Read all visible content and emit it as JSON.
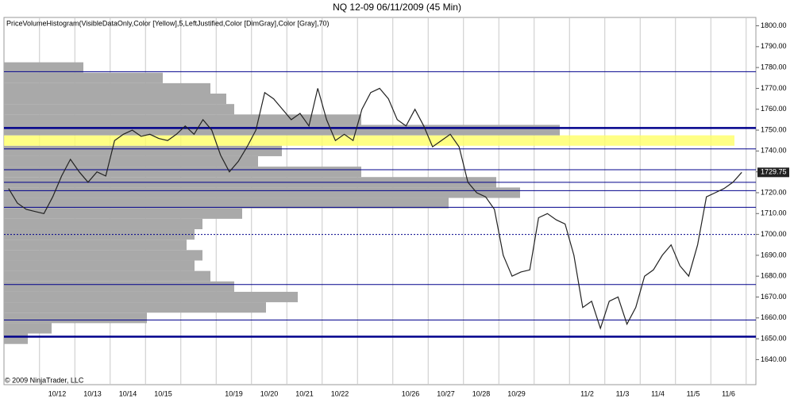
{
  "chart_data": {
    "type": "line",
    "title": "NQ 12-09  06/11/2009 (45 Min)",
    "indicator_label": "PriceVolumeHistogram(VisibleDataOnly,Color [Yellow],5,LeftJustified,Color [DimGray],Color [Gray],70)",
    "copyright": "© 2009 NinjaTrader, LLC",
    "categories": [
      null,
      "10/12",
      "10/13",
      "10/14",
      "10/15",
      null,
      "10/19",
      "10/20",
      "10/21",
      "10/22",
      null,
      "10/26",
      "10/27",
      "10/28",
      "10/29",
      null,
      "11/2",
      "11/3",
      "11/4",
      "11/5",
      "11/6"
    ],
    "series": [
      {
        "name": "NQ 12-09",
        "color": "#222222",
        "values": [
          [
            1722,
            1715,
            1712,
            1711
          ],
          [
            1710,
            1718,
            1728,
            1736
          ],
          [
            1730,
            1725,
            1730,
            1728
          ],
          [
            1745,
            1748,
            1750,
            1747
          ],
          [
            1748,
            1746,
            1745,
            1748
          ],
          [
            1752,
            1748,
            1755,
            1750
          ],
          [
            1738,
            1730,
            1735,
            1742
          ],
          [
            1750,
            1768,
            1765,
            1760
          ],
          [
            1755,
            1758,
            1752,
            1770
          ],
          [
            1755,
            1745,
            1748,
            1745
          ],
          [
            1760,
            1768,
            1770,
            1765
          ],
          [
            1755,
            1752,
            1760,
            1752
          ],
          [
            1742,
            1745,
            1748,
            1742
          ],
          [
            1725,
            1720,
            1718,
            1712
          ],
          [
            1690,
            1680,
            1682,
            1683
          ],
          [
            1708,
            1710,
            1707,
            1705
          ],
          [
            1690,
            1665,
            1668,
            1655
          ],
          [
            1668,
            1670,
            1657,
            1665
          ],
          [
            1680,
            1683,
            1690,
            1695
          ],
          [
            1685,
            1680,
            1695,
            1718
          ],
          [
            1720,
            1722,
            1725,
            1729.75
          ]
        ]
      }
    ],
    "last_price": 1729.75,
    "profile": {
      "color": "#a9a9a9",
      "highlight_color": "#ffff66",
      "levels": [
        1650,
        1655,
        1660,
        1665,
        1670,
        1675,
        1680,
        1685,
        1690,
        1695,
        1700,
        1705,
        1710,
        1715,
        1720,
        1725,
        1730,
        1735,
        1740,
        1745,
        1750,
        1755,
        1760,
        1765,
        1770,
        1775,
        1780
      ],
      "values": [
        30,
        60,
        180,
        330,
        370,
        290,
        260,
        240,
        250,
        230,
        240,
        250,
        300,
        560,
        650,
        620,
        450,
        320,
        350,
        920,
        700,
        450,
        290,
        280,
        260,
        200,
        100
      ]
    },
    "levels": [
      1778,
      1741,
      1731,
      1725,
      1721,
      1713,
      1676,
      1659
    ],
    "major_levels": [
      1751,
      1651
    ],
    "dotted_levels": [
      1700
    ],
    "level_color": "#00008b",
    "ylim": [
      1628,
      1804
    ],
    "yticks": [
      {
        "value": 1640,
        "label": "1640.00"
      },
      {
        "value": 1650,
        "label": "1650.00"
      },
      {
        "value": 1660,
        "label": "1660.00"
      },
      {
        "value": 1670,
        "label": "1670.00"
      },
      {
        "value": 1680,
        "label": "1680.00"
      },
      {
        "value": 1690,
        "label": "1690.00"
      },
      {
        "value": 1700,
        "label": "1700.00"
      },
      {
        "value": 1710,
        "label": "1710.00"
      },
      {
        "value": 1720,
        "label": "1720.00"
      },
      {
        "value": 1730,
        "label": "1730.00"
      },
      {
        "value": 1740,
        "label": "1740.00"
      },
      {
        "value": 1750,
        "label": "1750.00"
      },
      {
        "value": 1760,
        "label": "1760.00"
      },
      {
        "value": 1770,
        "label": "1770.00"
      },
      {
        "value": 1780,
        "label": "1780.00"
      },
      {
        "value": 1790,
        "label": "1790.00"
      },
      {
        "value": 1800,
        "label": "1800.00"
      }
    ],
    "grid": true
  }
}
